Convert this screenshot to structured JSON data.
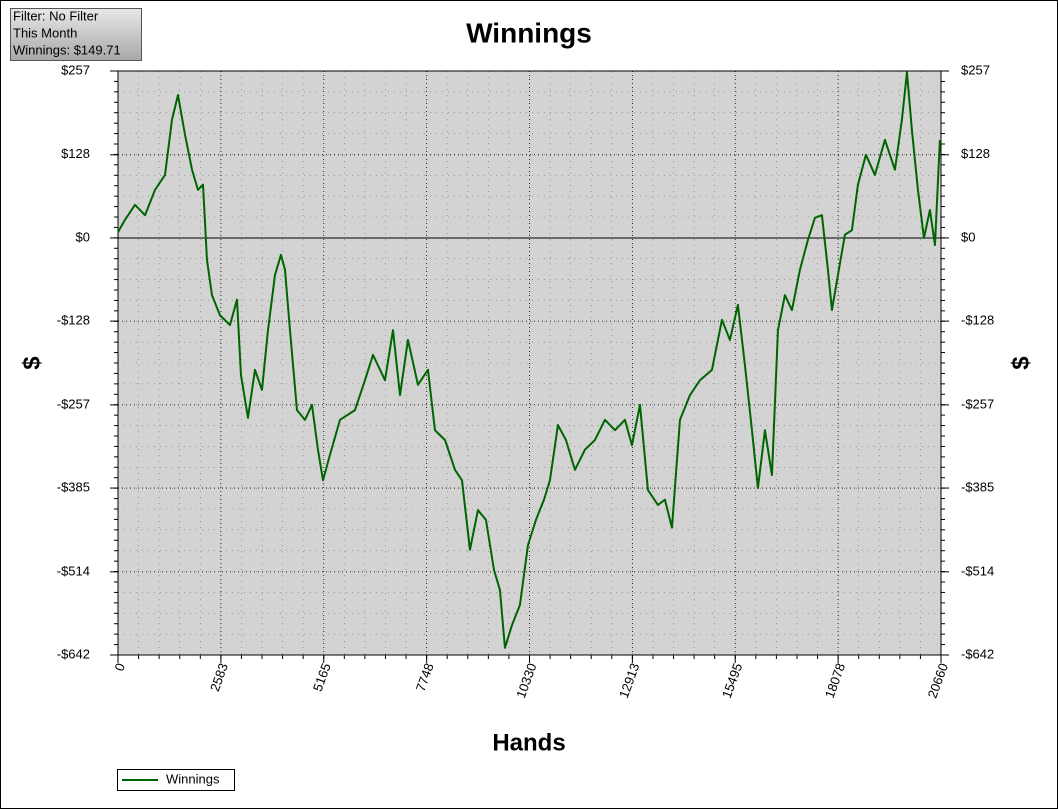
{
  "info_box": {
    "lines": [
      "Filter: No Filter",
      "This Month",
      "Winnings: $149.71"
    ]
  },
  "chart_data": {
    "type": "line",
    "title": "Winnings",
    "x_label": "Hands",
    "y_label": "$",
    "x": [
      0,
      176,
      427,
      678,
      929,
      1180,
      1355,
      1506,
      1682,
      1858,
      2008,
      2134,
      2234,
      2359,
      2560,
      2811,
      2987,
      3087,
      3263,
      3439,
      3614,
      3765,
      3941,
      4091,
      4192,
      4317,
      4493,
      4694,
      4869,
      5020,
      5146,
      5321,
      5572,
      5949,
      6200,
      6401,
      6702,
      6903,
      7079,
      7279,
      7530,
      7781,
      7957,
      8208,
      8459,
      8635,
      8835,
      9036,
      9237,
      9438,
      9588,
      9714,
      9890,
      10090,
      10291,
      10492,
      10693,
      10843,
      11044,
      11245,
      11471,
      11722,
      11973,
      12224,
      12475,
      12726,
      12902,
      13103,
      13303,
      13554,
      13730,
      13906,
      14107,
      14358,
      14609,
      14910,
      15161,
      15361,
      15562,
      15738,
      15914,
      16064,
      16240,
      16416,
      16567,
      16742,
      16918,
      17119,
      17320,
      17495,
      17671,
      17822,
      17922,
      18073,
      18248,
      18424,
      18575,
      18775,
      19001,
      19252,
      19503,
      19679,
      19805,
      19930,
      20081,
      20232,
      20382,
      20508,
      20633
    ],
    "series": [
      {
        "name": "Winnings",
        "color": "#006400",
        "values": [
          9,
          28,
          51,
          35,
          74,
          97,
          182,
          220,
          159,
          105,
          74,
          82,
          -34,
          -88,
          -119,
          -134,
          -95,
          -211,
          -277,
          -203,
          -234,
          -142,
          -57,
          -26,
          -49,
          -142,
          -265,
          -280,
          -257,
          -326,
          -373,
          -334,
          -280,
          -265,
          -219,
          -180,
          -219,
          -142,
          -242,
          -157,
          -226,
          -203,
          -296,
          -311,
          -357,
          -373,
          -480,
          -419,
          -434,
          -511,
          -542,
          -631,
          -596,
          -565,
          -473,
          -434,
          -403,
          -373,
          -288,
          -311,
          -357,
          -326,
          -311,
          -280,
          -296,
          -280,
          -319,
          -257,
          -388,
          -411,
          -403,
          -446,
          -280,
          -242,
          -219,
          -203,
          -126,
          -157,
          -103,
          -196,
          -296,
          -385,
          -296,
          -365,
          -142,
          -88,
          -111,
          -49,
          -3,
          31,
          35,
          -49,
          -111,
          -57,
          5,
          12,
          82,
          128,
          97,
          151,
          105,
          182,
          255,
          166,
          74,
          0,
          43,
          -11,
          151
        ]
      }
    ],
    "xlim": [
      0,
      20660
    ],
    "xticks": [
      0,
      2583,
      5165,
      7748,
      10330,
      12913,
      15495,
      18078,
      20660
    ],
    "ylim": [
      -642,
      257
    ],
    "yticks": [
      {
        "value": 257,
        "label": "$257"
      },
      {
        "value": 128,
        "label": "$128"
      },
      {
        "value": 0,
        "label": "$0"
      },
      {
        "value": -128,
        "label": "-$128"
      },
      {
        "value": -257,
        "label": "-$257"
      },
      {
        "value": -385,
        "label": "-$385"
      },
      {
        "value": -514,
        "label": "-$514"
      },
      {
        "value": -642,
        "label": "-$642"
      }
    ],
    "grid": true
  }
}
